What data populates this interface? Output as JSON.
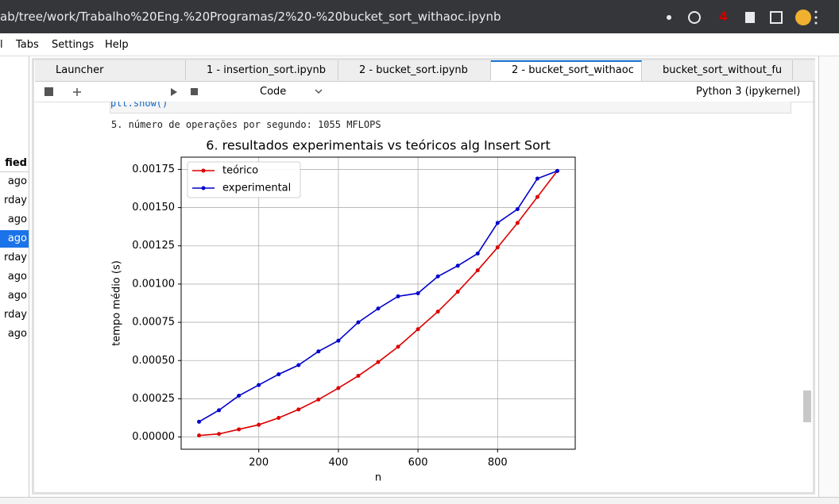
{
  "browser": {
    "url": "ab/tree/work/Trabalho%20Eng.%20Programas/2%20-%20bucket_sort_withaoc.ipynb",
    "badge": "4"
  },
  "menu": [
    "l",
    "Tabs",
    "Settings",
    "Help"
  ],
  "tabs": [
    "Launcher",
    "1 - insertion_sort.ipynb",
    "2 - bucket_sort.ipynb",
    "2 - bucket_sort_withaoc",
    "bucket_sort_without_fu"
  ],
  "toolbar": {
    "cell_type": "Code",
    "kernel": "Python 3 (ipykernel)"
  },
  "sidebar": {
    "header": "fied",
    "items": [
      "ago",
      "rday",
      "ago",
      "ago",
      "rday",
      "ago",
      "ago",
      "rday",
      "ago"
    ]
  },
  "notebook": {
    "code": "plt.show()",
    "output": "5. número de operações por segundo: 1055 MFLOPS"
  },
  "chart_data": {
    "type": "line",
    "title": "6. resultados experimentais vs teóricos alg Insert Sort",
    "x_label": "n",
    "y_label": "tempo médio (s)",
    "x": [
      50,
      100,
      150,
      200,
      250,
      300,
      350,
      400,
      450,
      500,
      550,
      600,
      650,
      700,
      750,
      800,
      850,
      900,
      950
    ],
    "series": [
      {
        "name": "teórico",
        "color": "#dd0000",
        "values": [
          1e-05,
          2e-05,
          5e-05,
          8e-05,
          0.000125,
          0.00018,
          0.000245,
          0.00032,
          0.0004,
          0.00049,
          0.00059,
          0.000705,
          0.00082,
          0.00095,
          0.00109,
          0.00124,
          0.0014,
          0.00157,
          0.00174
        ]
      },
      {
        "name": "experimental",
        "color": "#0000cc",
        "values": [
          0.0001,
          0.000175,
          0.00027,
          0.00034,
          0.00041,
          0.00047,
          0.00056,
          0.00063,
          0.00075,
          0.00084,
          0.00092,
          0.00094,
          0.00105,
          0.00112,
          0.0012,
          0.0014,
          0.00149,
          0.00169,
          0.00174
        ]
      }
    ],
    "xlim": [
      5,
      995
    ],
    "xticks": [
      200,
      400,
      600,
      800
    ],
    "ylim": [
      -8e-05,
      0.00183
    ],
    "yticks": [
      {
        "value": 0,
        "label": "0.00000"
      },
      {
        "value": 0.00025,
        "label": "0.00025"
      },
      {
        "value": 0.0005,
        "label": "0.00050"
      },
      {
        "value": 0.00075,
        "label": "0.00075"
      },
      {
        "value": 0.001,
        "label": "0.00100"
      },
      {
        "value": 0.00125,
        "label": "0.00125"
      },
      {
        "value": 0.0015,
        "label": "0.00150"
      },
      0.00175
    ],
    "grid": true,
    "legend": "upper left"
  }
}
